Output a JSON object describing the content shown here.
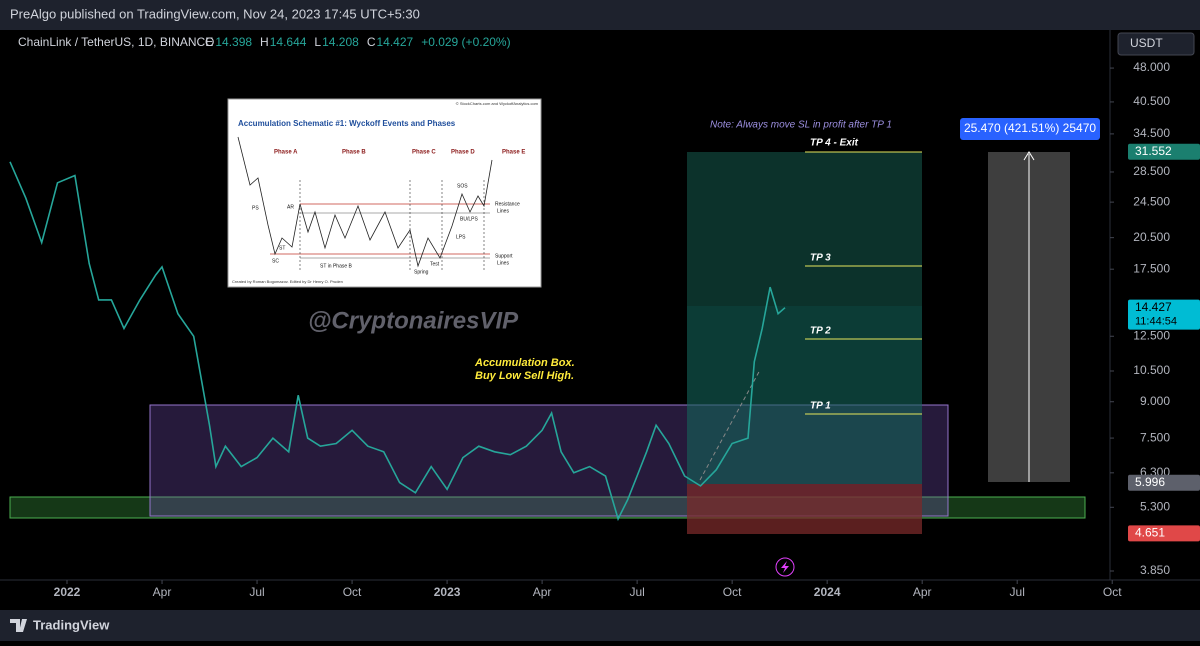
{
  "header": {
    "publisher": "PreAlgo published on TradingView.com, Nov 24, 2023 17:45 UTC+5:30"
  },
  "legend": {
    "symbol": "ChainLink / TetherUS, 1D, BINANCE",
    "ohlc": [
      {
        "label": "O",
        "value": "14.398"
      },
      {
        "label": "H",
        "value": "14.644"
      },
      {
        "label": "L",
        "value": "14.208"
      },
      {
        "label": "C",
        "value": "14.427"
      }
    ],
    "change": "+0.029 (+0.20%)"
  },
  "currency": "USDT",
  "annotations": {
    "watermark": "@CryptonairesVIP",
    "box_line1": "Accumulation Box.",
    "box_line2": "Buy Low Sell High.",
    "note": "Note: Always move SL in profit after TP 1",
    "tp4": "TP 4 - Exit",
    "tp3": "TP 3",
    "tp2": "TP 2",
    "tp1": "TP 1",
    "measure": "25.470 (421.51%) 25470"
  },
  "inset": {
    "source": "© StockCharts.com and WyckoffAnalytics.com",
    "title": "Accumulation Schematic #1: Wyckoff Events and Phases",
    "phases": [
      "Phase A",
      "Phase B",
      "Phase C",
      "Phase D",
      "Phase E"
    ],
    "events": [
      "PS",
      "SC",
      "AR",
      "ST",
      "ST in Phase B",
      "Spring",
      "Test",
      "SOS",
      "BU/LPS",
      "LPS",
      "Resistance",
      "Lines",
      "Support",
      "Lines"
    ],
    "credit": "Created by Roman Bogomazov. Edited by Dr Henry O. Pruden"
  },
  "footer": {
    "brand": "TradingView"
  },
  "chart_data": {
    "type": "line",
    "log_scale": true,
    "color": "#26a69a",
    "x": [
      -1.8,
      -1.3,
      -0.8,
      -0.3,
      0.25,
      0.7,
      1.0,
      1.4,
      1.8,
      2.3,
      2.8,
      3.0,
      3.5,
      4.0,
      4.5,
      4.7,
      5.0,
      5.5,
      6.0,
      6.5,
      7.0,
      7.3,
      7.6,
      8.0,
      8.5,
      9.0,
      9.5,
      10.0,
      10.5,
      11.0,
      11.5,
      12.0,
      12.5,
      13.0,
      13.5,
      14.0,
      14.5,
      15.0,
      15.3,
      15.6,
      16.0,
      16.5,
      17.0,
      17.4,
      17.7,
      18.0,
      18.3,
      18.6,
      19.0,
      19.5,
      20.0,
      20.5,
      21.0,
      21.5,
      21.7,
      21.95,
      22.2,
      22.45,
      22.67
    ],
    "values": [
      30,
      25,
      20,
      27,
      28,
      18,
      15,
      15,
      13,
      15,
      17,
      17.7,
      14,
      12.5,
      8,
      6.5,
      7.2,
      6.5,
      6.8,
      7.5,
      7,
      9.3,
      7.5,
      7.2,
      7.3,
      7.8,
      7.2,
      7,
      6,
      5.7,
      6.5,
      5.8,
      6.8,
      7.2,
      7,
      6.9,
      7.2,
      7.8,
      8.5,
      7,
      6.3,
      6.5,
      6.2,
      5,
      5.5,
      6.2,
      7,
      8,
      7.3,
      6.2,
      5.9,
      6.4,
      7.3,
      7.5,
      11,
      13,
      16,
      14,
      14.427
    ],
    "xlim": [
      -1.8,
      32.93
    ],
    "ylim": [
      3.68,
      58.1
    ],
    "xticks": [
      {
        "value": 0,
        "label": "2022"
      },
      {
        "value": 3,
        "label": "Apr"
      },
      {
        "value": 6,
        "label": "Jul"
      },
      {
        "value": 9,
        "label": "Oct"
      },
      {
        "value": 12,
        "label": "2023"
      },
      {
        "value": 15,
        "label": "Apr"
      },
      {
        "value": 18,
        "label": "Jul"
      },
      {
        "value": 21,
        "label": "Oct"
      },
      {
        "value": 24,
        "label": "2024"
      },
      {
        "value": 27,
        "label": "Apr"
      },
      {
        "value": 30,
        "label": "Jul"
      },
      {
        "value": 33,
        "label": "Oct"
      }
    ],
    "yticks": [
      {
        "value": 48,
        "label": "48.000"
      },
      {
        "value": 40.5,
        "label": "40.500"
      },
      {
        "value": 34.5,
        "label": "34.500"
      },
      {
        "value": 28.5,
        "label": "28.500"
      },
      {
        "value": 24.5,
        "label": "24.500"
      },
      {
        "value": 20.5,
        "label": "20.500"
      },
      {
        "value": 17.5,
        "label": "17.500"
      },
      {
        "value": 12.5,
        "label": "12.500"
      },
      {
        "value": 10.5,
        "label": "10.500"
      },
      {
        "value": 9,
        "label": "9.000"
      },
      {
        "value": 7.5,
        "label": "7.500"
      },
      {
        "value": 6.3,
        "label": "6.300"
      },
      {
        "value": 5.3,
        "label": "5.300"
      },
      {
        "value": 3.85,
        "label": "3.850"
      }
    ],
    "price_labels": [
      {
        "value": 31.552,
        "label": "31.552",
        "color": "#1b7f6f"
      },
      {
        "value": 14.427,
        "label": "14.427",
        "color": "#00bcd4"
      },
      {
        "value": 5.996,
        "label": "5.996",
        "color": "#5d606b"
      },
      {
        "value": 4.651,
        "label": "4.651",
        "color": "#e04848"
      }
    ],
    "countdown": "11:44:54"
  }
}
